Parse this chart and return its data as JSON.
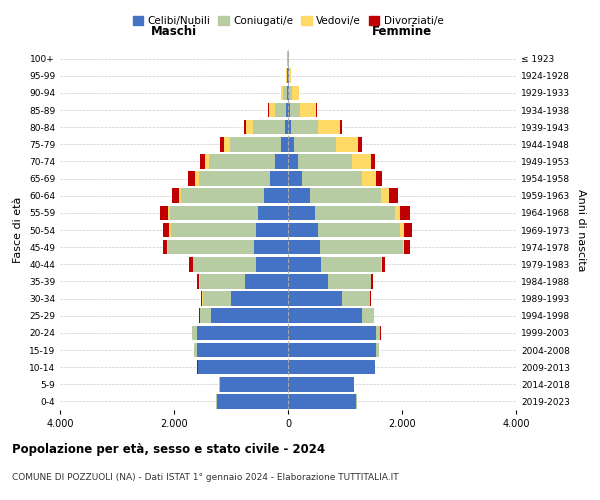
{
  "age_groups": [
    "0-4",
    "5-9",
    "10-14",
    "15-19",
    "20-24",
    "25-29",
    "30-34",
    "35-39",
    "40-44",
    "45-49",
    "50-54",
    "55-59",
    "60-64",
    "65-69",
    "70-74",
    "75-79",
    "80-84",
    "85-89",
    "90-94",
    "95-99",
    "100+"
  ],
  "birth_years": [
    "2019-2023",
    "2014-2018",
    "2009-2013",
    "2004-2008",
    "1999-2003",
    "1994-1998",
    "1989-1993",
    "1984-1988",
    "1979-1983",
    "1974-1978",
    "1969-1973",
    "1964-1968",
    "1959-1963",
    "1954-1958",
    "1949-1953",
    "1944-1948",
    "1939-1943",
    "1934-1938",
    "1929-1933",
    "1924-1928",
    "≤ 1923"
  ],
  "male": {
    "celibi": [
      1250,
      1200,
      1580,
      1600,
      1600,
      1350,
      1000,
      750,
      560,
      600,
      560,
      520,
      420,
      320,
      230,
      120,
      60,
      30,
      20,
      10,
      5
    ],
    "coniugati": [
      5,
      5,
      5,
      50,
      80,
      200,
      500,
      800,
      1100,
      1500,
      1500,
      1550,
      1450,
      1250,
      1150,
      900,
      550,
      200,
      60,
      15,
      5
    ],
    "vedovi": [
      2,
      2,
      2,
      2,
      2,
      2,
      5,
      5,
      10,
      15,
      20,
      30,
      40,
      60,
      70,
      100,
      130,
      100,
      40,
      10,
      2
    ],
    "divorziati": [
      2,
      2,
      2,
      2,
      5,
      10,
      20,
      40,
      60,
      80,
      120,
      150,
      130,
      120,
      100,
      80,
      40,
      20,
      5,
      2,
      1
    ]
  },
  "female": {
    "nubili": [
      1200,
      1150,
      1520,
      1550,
      1550,
      1300,
      950,
      700,
      580,
      560,
      520,
      480,
      380,
      250,
      180,
      100,
      50,
      30,
      20,
      10,
      5
    ],
    "coniugate": [
      5,
      5,
      5,
      40,
      70,
      200,
      480,
      750,
      1050,
      1450,
      1450,
      1400,
      1250,
      1050,
      950,
      750,
      480,
      180,
      50,
      15,
      5
    ],
    "vedove": [
      2,
      2,
      2,
      2,
      2,
      2,
      5,
      8,
      15,
      30,
      60,
      80,
      150,
      250,
      320,
      380,
      380,
      280,
      120,
      30,
      5
    ],
    "divorziate": [
      2,
      2,
      2,
      2,
      5,
      10,
      15,
      30,
      60,
      100,
      150,
      180,
      150,
      100,
      80,
      60,
      30,
      15,
      5,
      2,
      1
    ]
  },
  "colors": {
    "celibi": "#4472c4",
    "coniugati": "#b8cca4",
    "vedovi": "#ffd966",
    "divorziati": "#c00000"
  },
  "title": "Popolazione per età, sesso e stato civile - 2024",
  "subtitle": "COMUNE DI POZZUOLI (NA) - Dati ISTAT 1° gennaio 2024 - Elaborazione TUTTITALIA.IT",
  "xlabel_left": "Maschi",
  "xlabel_right": "Femmine",
  "ylabel_left": "Fasce di età",
  "ylabel_right": "Anni di nascita",
  "xlim": 4000,
  "legend_labels": [
    "Celibi/Nubili",
    "Coniugati/e",
    "Vedovi/e",
    "Divorziati/e"
  ],
  "background_color": "#ffffff",
  "grid_color": "#cccccc"
}
